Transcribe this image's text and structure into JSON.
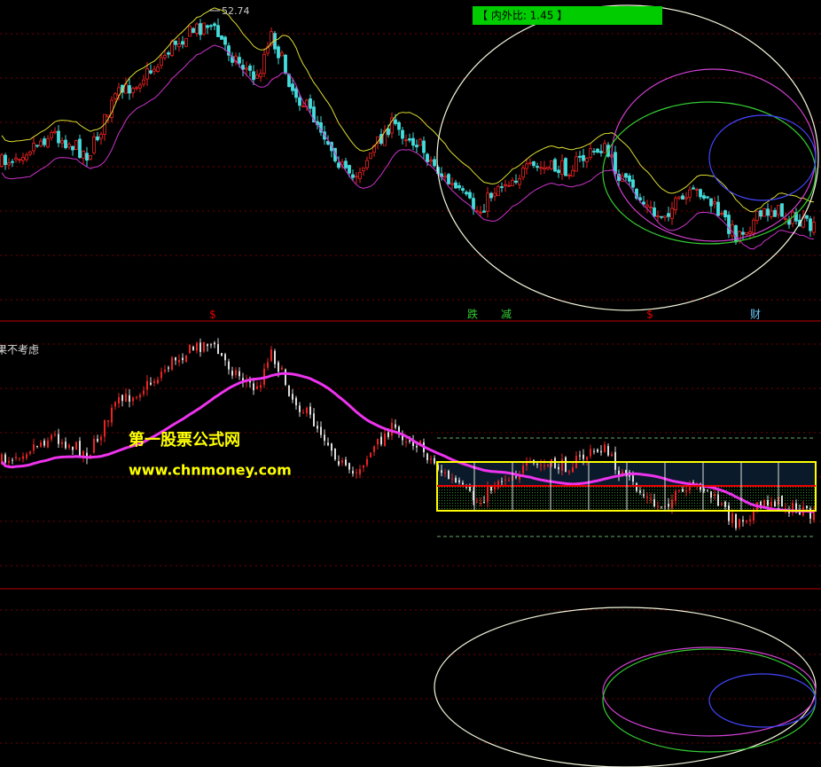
{
  "panel1": {
    "high_label": "52.74",
    "ratio_box": "【 内外比: 1.45 】",
    "markers": [
      "$",
      "跌",
      "减",
      "$",
      "财"
    ]
  },
  "panel2": {
    "caption": "果不考虑"
  },
  "watermark": {
    "site_name": "第一股票公式网",
    "url": "www.chnmoney.com"
  }
}
